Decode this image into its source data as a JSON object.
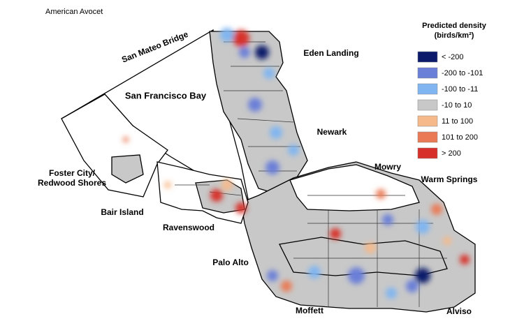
{
  "title": "American Avocet",
  "legend": {
    "title": [
      "Predicted density",
      "(birds/km²)"
    ],
    "items": [
      {
        "label": "< -200",
        "color": "#0b1a6b"
      },
      {
        "label": "-200 to -101",
        "color": "#6a7fd8"
      },
      {
        "label": "-100 to -11",
        "color": "#80b5f1"
      },
      {
        "label": "-10 to 10",
        "color": "#c8c8c8"
      },
      {
        "label": "11 to 100",
        "color": "#f6b98a"
      },
      {
        "label": "101 to 200",
        "color": "#ea7a55"
      },
      {
        "label": "> 200",
        "color": "#d7302b"
      }
    ]
  },
  "places": [
    "San Mateo Bridge",
    "Eden Landing",
    "San Francisco Bay",
    "Newark",
    "Mowry",
    "Warm Springs",
    "Foster City/",
    "Redwood Shores",
    "Bair Island",
    "Ravenswood",
    "Palo Alto",
    "Moffett",
    "Alviso"
  ]
}
